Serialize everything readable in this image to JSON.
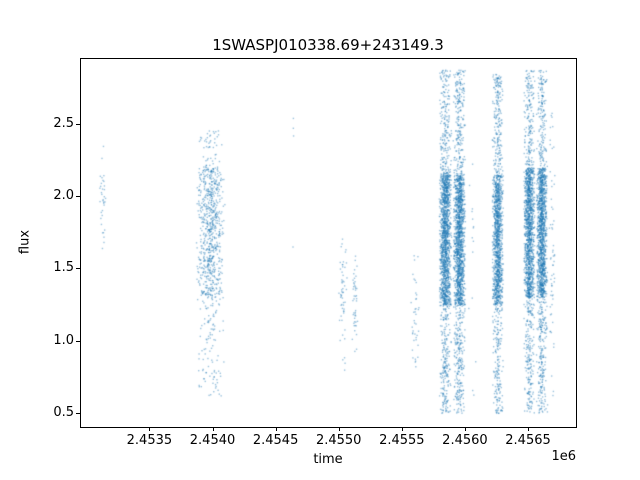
{
  "chart_data": {
    "type": "scatter",
    "title": "1SWASPJ010338.69+243149.3",
    "xlabel": "time",
    "ylabel": "flux",
    "x_offset_label": "1e6",
    "marker_color": "#1f77b4",
    "marker_alpha": 0.45,
    "grid": false,
    "legend": "none",
    "xlim": [
      2452950,
      2456880
    ],
    "ylim": [
      0.4,
      2.96
    ],
    "xticks": {
      "values": [
        2453500,
        2454000,
        2454500,
        2455000,
        2455500,
        2456000,
        2456500
      ],
      "labels": [
        "2.4535",
        "2.4540",
        "2.4545",
        "2.4550",
        "2.4555",
        "2.4560",
        "2.4565"
      ]
    },
    "yticks": {
      "values": [
        0.5,
        1.0,
        1.5,
        2.0,
        2.5
      ],
      "labels": [
        "0.5",
        "1.0",
        "1.5",
        "2.0",
        "2.5"
      ]
    },
    "bands": [
      {
        "x": [
          2453100,
          2453150
        ],
        "count": 35,
        "y_full": [
          1.62,
          2.36
        ],
        "y_core": [
          1.8,
          2.15
        ],
        "core_frac": 0.5
      },
      {
        "x": [
          2453860,
          2454100
        ],
        "count": 850,
        "y_full": [
          0.62,
          2.47
        ],
        "y_core": [
          1.3,
          2.2
        ],
        "core_frac": 0.65
      },
      {
        "x": [
          2454620,
          2454650
        ],
        "count": 4,
        "y_full": [
          1.4,
          2.55
        ],
        "y_core": [
          2.4,
          2.55
        ],
        "core_frac": 0.5
      },
      {
        "x": [
          2454990,
          2455060
        ],
        "count": 55,
        "y_full": [
          0.78,
          1.72
        ],
        "y_core": [
          1.15,
          1.55
        ],
        "core_frac": 0.5
      },
      {
        "x": [
          2455100,
          2455150
        ],
        "count": 45,
        "y_full": [
          0.88,
          1.62
        ],
        "y_core": [
          1.1,
          1.5
        ],
        "core_frac": 0.5
      },
      {
        "x": [
          2455560,
          2455640
        ],
        "count": 40,
        "y_full": [
          0.78,
          1.63
        ],
        "y_core": [
          1.0,
          1.45
        ],
        "core_frac": 0.5
      },
      {
        "x": [
          2455790,
          2455890
        ],
        "count": 1800,
        "y_full": [
          0.5,
          2.88
        ],
        "y_core": [
          1.25,
          2.15
        ],
        "core_frac": 0.6
      },
      {
        "x": [
          2455900,
          2456000
        ],
        "count": 1800,
        "y_full": [
          0.5,
          2.88
        ],
        "y_core": [
          1.25,
          2.15
        ],
        "core_frac": 0.6
      },
      {
        "x": [
          2456020,
          2456090
        ],
        "count": 15,
        "y_full": [
          0.6,
          2.3
        ],
        "y_core": [
          1.2,
          1.9
        ],
        "core_frac": 0.5
      },
      {
        "x": [
          2456210,
          2456300
        ],
        "count": 1500,
        "y_full": [
          0.5,
          2.86
        ],
        "y_core": [
          1.25,
          2.15
        ],
        "core_frac": 0.6
      },
      {
        "x": [
          2456460,
          2456550
        ],
        "count": 1600,
        "y_full": [
          0.5,
          2.88
        ],
        "y_core": [
          1.3,
          2.2
        ],
        "core_frac": 0.6
      },
      {
        "x": [
          2456560,
          2456650
        ],
        "count": 1600,
        "y_full": [
          0.5,
          2.88
        ],
        "y_core": [
          1.3,
          2.2
        ],
        "core_frac": 0.6
      },
      {
        "x": [
          2456660,
          2456710
        ],
        "count": 60,
        "y_full": [
          0.55,
          2.6
        ],
        "y_core": [
          1.2,
          2.0
        ],
        "core_frac": 0.5
      }
    ]
  }
}
